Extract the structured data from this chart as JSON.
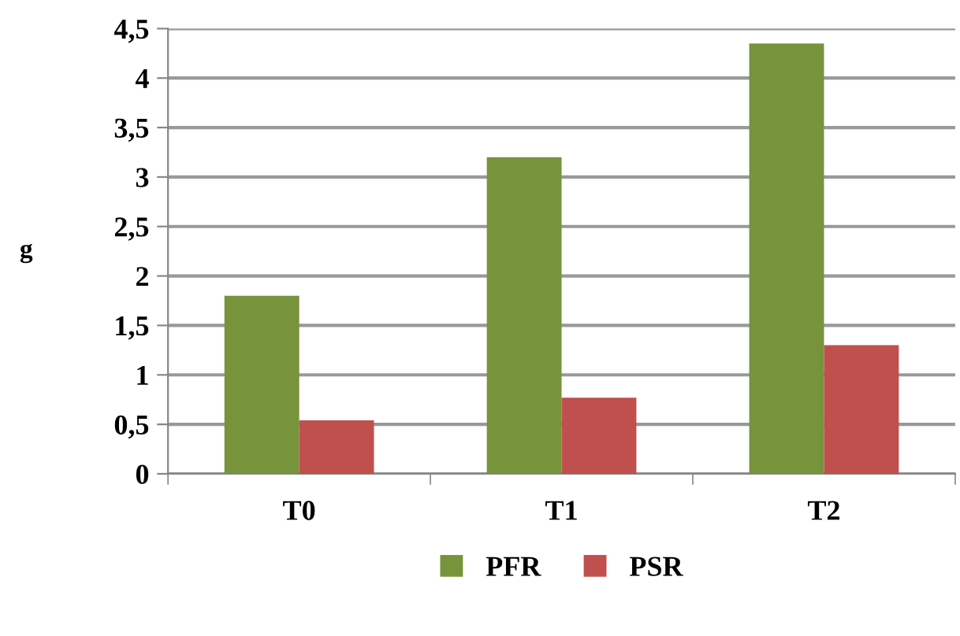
{
  "chart_data": {
    "type": "bar",
    "ylabel": "g",
    "categories": [
      "T0",
      "T1",
      "T2"
    ],
    "series": [
      {
        "name": "PFR",
        "color": "#77933c",
        "values": [
          1.8,
          3.2,
          4.35
        ]
      },
      {
        "name": "PSR",
        "color": "#c0504d",
        "values": [
          0.54,
          0.77,
          1.3
        ]
      }
    ],
    "ylim": [
      0,
      4.5
    ],
    "yticks": [
      0,
      {
        "value": 0.5,
        "label": "0,5"
      },
      1,
      {
        "value": 1.5,
        "label": "1,5"
      },
      2,
      {
        "value": 2.5,
        "label": "2,5"
      },
      3,
      {
        "value": 3.5,
        "label": "3,5"
      },
      4,
      {
        "value": 4.5,
        "label": "4,5"
      }
    ],
    "grid": "y",
    "legend": "bottom"
  }
}
